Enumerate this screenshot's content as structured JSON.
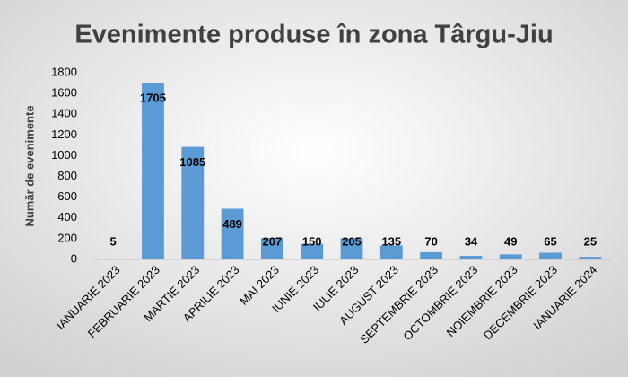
{
  "chart_data": {
    "type": "bar",
    "title": "Evenimente produse în zona Târgu-Jiu",
    "y_label": "Număr de evenimente",
    "categories": [
      "IANUARIE 2023",
      "FEBRUARIE 2023",
      "MARTIE 2023",
      "APRILIE 2023",
      "MAI 2023",
      "IUNIE 2023",
      "IULIE 2023",
      "AUGUST 2023",
      "SEPTEMBRIE 2023",
      "OCTOMBRIE 2023",
      "NOIEMBRIE 2023",
      "DECEMBRIE 2023",
      "IANUARIE 2024"
    ],
    "values": [
      5,
      1705,
      1085,
      489,
      207,
      150,
      205,
      135,
      70,
      34,
      49,
      65,
      25
    ],
    "color": "#5b9bd5",
    "ylim": [
      0,
      1800
    ],
    "yticks": [
      0,
      200,
      400,
      600,
      800,
      1000,
      1200,
      1400,
      1600,
      1800
    ],
    "grid": false
  }
}
